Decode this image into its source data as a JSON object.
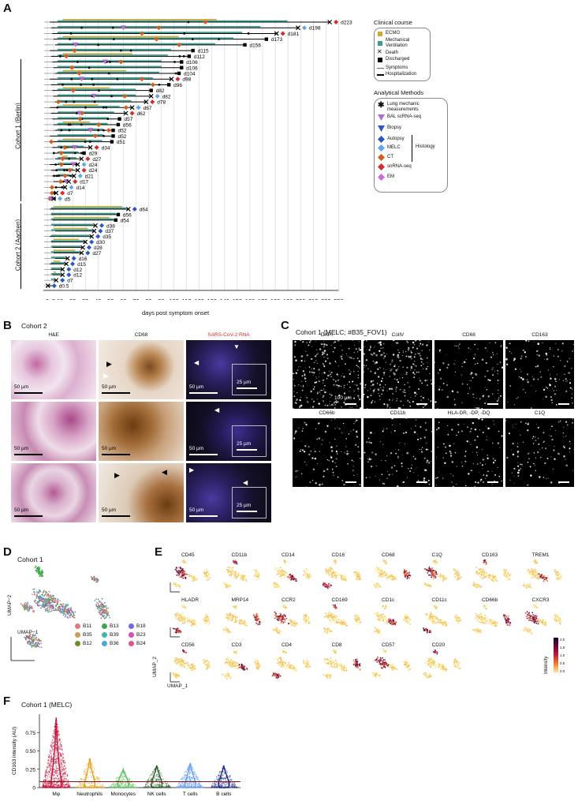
{
  "panel_letters": {
    "a": "A",
    "b": "B",
    "c": "C",
    "d": "D",
    "e": "E",
    "f": "F"
  },
  "panelA": {
    "cohort1_label": "Cohort 1 (Berlin)",
    "cohort2_label": "Cohort 2 (Aachen)",
    "xlabel": "days post symptom onset",
    "ticks": [
      "0",
      "5",
      "10",
      "20",
      "30",
      "40",
      "50",
      "60",
      "70",
      "80",
      "90",
      "100",
      "110",
      "120",
      "130",
      "140",
      "150",
      "160",
      "170",
      "180",
      "190",
      "200",
      "210",
      "220",
      "230"
    ],
    "cohort1_rows": [
      "d223",
      "d198",
      "d181",
      "d173",
      "d156",
      "d115",
      "d112",
      "d106",
      "d106",
      "d104",
      "d98",
      "d96",
      "d82",
      "d82",
      "d78",
      "d67",
      "d62",
      "d57",
      "d56",
      "d52",
      "d52",
      "d51",
      "d34",
      "d29",
      "d27",
      "d24",
      "d24",
      "d21",
      "d17",
      "d14",
      "d7",
      "d5"
    ],
    "cohort2_rows": [
      "d64",
      "d56",
      "d54",
      "d38",
      "d37",
      "d35",
      "d30",
      "d28",
      "d27",
      "d16",
      "d15",
      "d12",
      "d12",
      "d7",
      "d0.5"
    ],
    "legend_clinical": {
      "title": "Clinical course",
      "items": [
        "ECMO",
        "Mechanical Ventilation",
        "Death",
        "Discharged",
        "Symptoms",
        "Hospitalization"
      ]
    },
    "legend_methods": {
      "title": "Analytical Methods",
      "items": [
        "Lung mechanic measurements",
        "BAL scRNA-seq",
        "Biopsy",
        "Autopsy",
        "MELC",
        "CT",
        "snRNA-seq",
        "EM"
      ],
      "histology_label": "Histology"
    },
    "colors": {
      "ecmo": "#d4a72c",
      "mv": "#3b9b8e",
      "bal": "#b36bd1",
      "biopsy": "#2a56c6",
      "autopsy": "#2a56c6",
      "melc": "#5fa8e8",
      "ct": "#d45d1a",
      "snrna": "#d42b2b",
      "em": "#c86be0"
    }
  },
  "panelB": {
    "title": "Cohort 2",
    "columns": [
      "H&E",
      "CD68",
      "SARS-CoV-2 RNA"
    ],
    "scalebar": "50 µm",
    "inset_scalebar": "25 µm"
  },
  "panelC": {
    "title": "Cohort 1 (MELC; #B35_FOV1)",
    "row1": [
      "DAPI",
      "CollV",
      "CD68",
      "CD163"
    ],
    "row2": [
      "CD66b",
      "CD11b",
      "HLA-DR, -DP, -DQ",
      "C1Q"
    ],
    "scalebar": "100 µm"
  },
  "panelD": {
    "title": "Cohort 1",
    "ylabel": "UMAP−2",
    "xlabel": "UMAP−1",
    "samples": [
      {
        "name": "B11",
        "color": "#e07a7a"
      },
      {
        "name": "B13",
        "color": "#3ea84a"
      },
      {
        "name": "B18",
        "color": "#6a6ae0"
      },
      {
        "name": "B35",
        "color": "#c8a05a"
      },
      {
        "name": "B39",
        "color": "#43b8a0"
      },
      {
        "name": "B23",
        "color": "#d04fbf"
      },
      {
        "name": "B12",
        "color": "#6e8f2a"
      },
      {
        "name": "B36",
        "color": "#4aa8d8"
      },
      {
        "name": "B24",
        "color": "#e0568c"
      }
    ]
  },
  "panelE": {
    "markers": [
      "CD45",
      "CD11b",
      "CD14",
      "CD16",
      "CD68",
      "C1Q",
      "CD163",
      "TREM1",
      "HLADR",
      "MRP14",
      "CCR2",
      "CD169",
      "CD1c",
      "CD11c",
      "CD66b",
      "CXCR3",
      "CD56",
      "CD3",
      "CD4",
      "CD8",
      "CD57",
      "CD20"
    ],
    "ylabel": "UMAP_2",
    "xlabel": "UMAP_1",
    "colorbar_label": "Intensity",
    "colorbar_ticks": [
      "2.0",
      "1.5",
      "1.0",
      "0.5",
      "0.0"
    ]
  },
  "panelF": {
    "title": "Cohort 1 (MELC)",
    "chart_data": {
      "type": "violin",
      "categories": [
        "Mφ",
        "Neutrophils",
        "Monocytes",
        "NK cells",
        "T cells",
        "B cells"
      ],
      "colors": [
        "#c8143c",
        "#e8a020",
        "#5cc060",
        "#2e5e2e",
        "#6aa0f0",
        "#1a2a8a"
      ],
      "maxima": [
        0.95,
        0.4,
        0.25,
        0.3,
        0.33,
        0.3
      ],
      "threshold": 0.08,
      "ylabel": "CD163 intensity (AU)",
      "ylim": [
        0,
        1.0
      ],
      "yticks": [
        "0.75",
        "0.50",
        "0.25",
        "0"
      ]
    }
  }
}
